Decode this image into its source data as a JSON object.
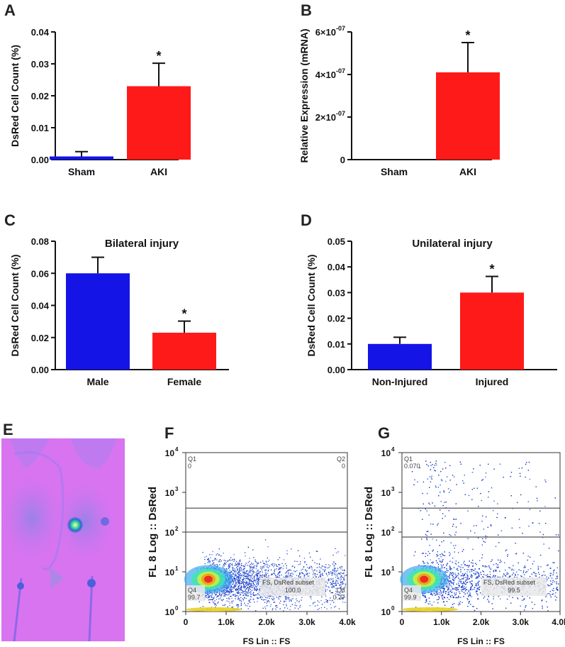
{
  "chart_data": [
    {
      "panel": "A",
      "type": "bar",
      "categories": [
        "Sham",
        "AKI"
      ],
      "values": [
        0.001,
        0.023
      ],
      "errors": [
        0.0015,
        0.0072
      ],
      "colors": [
        "#1414e6",
        "#ff1a1a"
      ],
      "significance": [
        "",
        "*"
      ],
      "title": "",
      "xlabel": "",
      "ylabel": "DsRed Cell Count (%)",
      "ylim": [
        0,
        0.04
      ],
      "yticks": [
        0,
        0.01,
        0.02,
        0.03,
        0.04
      ],
      "ytick_labels": [
        "0.00",
        "0.01",
        "0.02",
        "0.03",
        "0.04"
      ]
    },
    {
      "panel": "B",
      "type": "bar",
      "categories": [
        "Sham",
        "AKI"
      ],
      "values": [
        0,
        4.1e-07
      ],
      "errors": [
        0,
        1.4e-07
      ],
      "colors": [
        "#1414e6",
        "#ff1a1a"
      ],
      "significance": [
        "",
        "*"
      ],
      "title": "",
      "xlabel": "",
      "ylabel": "Relative Expression (mRNA)",
      "ylim": [
        0,
        6e-07
      ],
      "yticks": [
        0,
        2e-07,
        4e-07,
        6e-07
      ],
      "ytick_labels": [
        "0",
        "2×10",
        "4×10",
        "6×10"
      ],
      "ytick_exponent": "-07"
    },
    {
      "panel": "C",
      "type": "bar",
      "categories": [
        "Male",
        "Female"
      ],
      "values": [
        0.06,
        0.023
      ],
      "errors": [
        0.01,
        0.0072
      ],
      "colors": [
        "#1414e6",
        "#ff1a1a"
      ],
      "significance": [
        "",
        "*"
      ],
      "title": "Bilateral injury",
      "xlabel": "",
      "ylabel": "DsRed Cell Count (%)",
      "ylim": [
        0,
        0.08
      ],
      "yticks": [
        0,
        0.02,
        0.04,
        0.06,
        0.08
      ],
      "ytick_labels": [
        "0.00",
        "0.02",
        "0.04",
        "0.06",
        "0.08"
      ]
    },
    {
      "panel": "D",
      "type": "bar",
      "categories": [
        "Non-Injured",
        "Injured"
      ],
      "values": [
        0.01,
        0.03
      ],
      "errors": [
        0.0026,
        0.0063
      ],
      "colors": [
        "#1414e6",
        "#ff1a1a"
      ],
      "significance": [
        "",
        "*"
      ],
      "title": "Unilateral injury",
      "xlabel": "",
      "ylabel": "DsRed Cell Count (%)",
      "ylim": [
        0,
        0.05
      ],
      "yticks": [
        0,
        0.01,
        0.02,
        0.03,
        0.04,
        0.05
      ],
      "ytick_labels": [
        "0.00",
        "0.01",
        "0.02",
        "0.03",
        "0.04",
        "0.05"
      ]
    },
    {
      "panel": "F",
      "type": "scatter",
      "xlabel": "FS Lin :: FS",
      "ylabel": "FL 8 Log :: DsRed",
      "xlim": [
        0,
        4000
      ],
      "ylim": [
        1,
        10000
      ],
      "yscale": "log",
      "xticks": [
        0,
        1000,
        2000,
        3000,
        4000
      ],
      "xtick_labels": [
        "0",
        "1.0k",
        "2.0k",
        "3.0k",
        "4.0k"
      ],
      "yticks": [
        1,
        10,
        100,
        1000,
        10000
      ],
      "ytick_bases": [
        "10",
        "10",
        "10",
        "10",
        "10"
      ],
      "ytick_exps": [
        "0",
        "1",
        "2",
        "3",
        "4"
      ],
      "gate_lines": [
        400,
        100
      ],
      "quadrants": {
        "Q1": [
          "Q1",
          "0"
        ],
        "Q2": [
          "Q2",
          "0"
        ],
        "Q3": [
          "Q3",
          "0.27"
        ],
        "Q4": [
          "Q4",
          "99.7"
        ]
      },
      "gate_label": "FS, DsRed subset",
      "gate_value": "100.0",
      "high_events": 0
    },
    {
      "panel": "G",
      "type": "scatter",
      "xlabel": "FS Lin :: FS",
      "ylabel": "FL 8 Log :: DsRed",
      "xlim": [
        0,
        4000
      ],
      "ylim": [
        1,
        10000
      ],
      "yscale": "log",
      "xticks": [
        0,
        1000,
        2000,
        3000,
        4000
      ],
      "xtick_labels": [
        "0",
        "1.0k",
        "2.0k",
        "3.0k",
        "4.0k"
      ],
      "yticks": [
        1,
        10,
        100,
        1000,
        10000
      ],
      "ytick_bases": [
        "10",
        "10",
        "10",
        "10",
        "10"
      ],
      "ytick_exps": [
        "0",
        "1",
        "2",
        "3",
        "4"
      ],
      "gate_lines": [
        400,
        75
      ],
      "quadrants": {
        "Q1": [
          "Q1",
          "0.070"
        ],
        "Q2": null,
        "Q3": null,
        "Q4": [
          "Q4",
          "99.9"
        ]
      },
      "gate_label": "FS, DsRed subset",
      "gate_value": "99.5",
      "high_events": 1
    }
  ],
  "panels": {
    "A": "A",
    "B": "B",
    "C": "C",
    "D": "D",
    "E": "E",
    "F": "F",
    "G": "G"
  },
  "image_E": {
    "background": "#d874f0",
    "signal": "#1a8fd6"
  }
}
